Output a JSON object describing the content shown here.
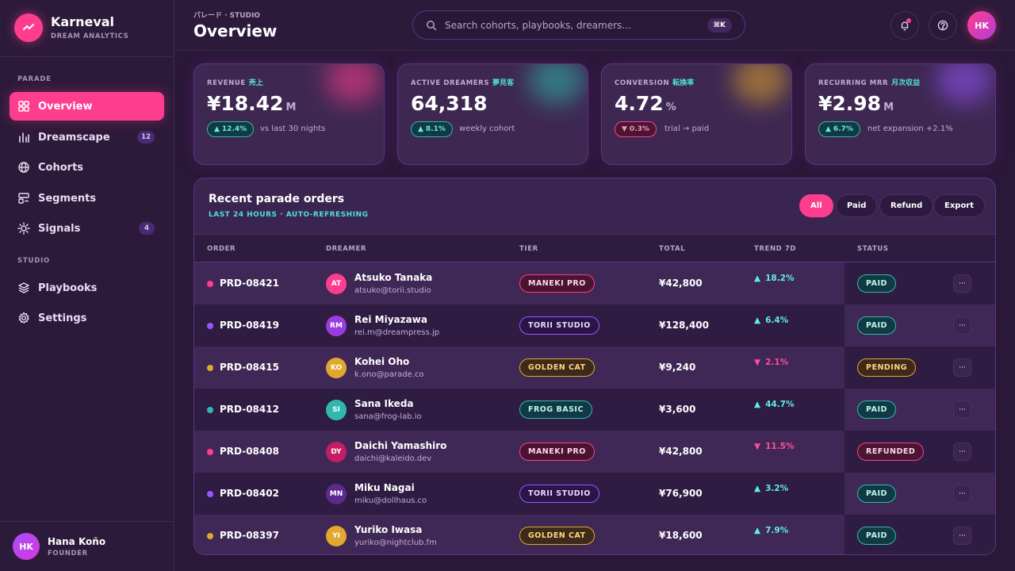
{
  "brand": {
    "name": "Karneval",
    "subtitle": "DREAM ANALYTICS"
  },
  "sidebar": {
    "section_parade": "PARADE",
    "section_studio": "STUDIO",
    "items": [
      {
        "label": "Overview",
        "icon": "grid-icon"
      },
      {
        "label": "Dreamscape",
        "icon": "bar-chart-icon",
        "badge": "12"
      },
      {
        "label": "Cohorts",
        "icon": "globe-icon"
      },
      {
        "label": "Segments",
        "icon": "segments-icon"
      },
      {
        "label": "Signals",
        "icon": "signal-icon",
        "badge": "4"
      },
      {
        "label": "Playbooks",
        "icon": "layers-icon"
      },
      {
        "label": "Settings",
        "icon": "gear-icon"
      }
    ],
    "user": {
      "initials": "HK",
      "name": "Hana Koño",
      "role": "FOUNDER"
    }
  },
  "header": {
    "breadcrumb": "パレード · STUDIO",
    "title": "Overview",
    "search_placeholder": "Search cohorts, playbooks, dreamers…",
    "search_shortcut": "⌘K",
    "avatar_initials": "HK"
  },
  "kpis": [
    {
      "label": "REVENUE",
      "label_jp": "売上",
      "value": "¥18.42",
      "unit": "M",
      "delta": "12.4%",
      "direction": "up",
      "note": "vs last 30 nights",
      "glow": "#ff3d8f"
    },
    {
      "label": "ACTIVE DREAMERS",
      "label_jp": "夢見客",
      "value": "64,318",
      "unit": "",
      "delta": "8.1%",
      "direction": "up",
      "note": "weekly cohort",
      "glow": "#2fb9ad"
    },
    {
      "label": "CONVERSION",
      "label_jp": "転換率",
      "value": "4.72",
      "unit": "%",
      "delta": "0.3%",
      "direction": "down",
      "note": "trial → paid",
      "glow": "#e0a82e"
    },
    {
      "label": "RECURRING MRR",
      "label_jp": "月次収益",
      "value": "¥2.98",
      "unit": "M",
      "delta": "6.7%",
      "direction": "up",
      "note": "net expansion +2.1%",
      "glow": "#9a55ff"
    }
  ],
  "orders": {
    "title": "Recent parade orders",
    "subtitle": "LAST 24 HOURS · AUTO-REFRESHING",
    "filters": [
      "All",
      "Paid",
      "Refund",
      "Export"
    ],
    "columns": [
      "ORDER",
      "DREAMER",
      "TIER",
      "TOTAL",
      "TREND 7D",
      "STATUS"
    ],
    "rows": [
      {
        "id": "PRD-08421",
        "dot": "#ff3d8f",
        "initials": "AT",
        "avatar": "#ff3d8f",
        "name": "Atsuko Tanaka",
        "email": "atsuko@torii.studio",
        "tier": "MANEKI PRO",
        "tier_class": "tier-maneki",
        "total": "¥42,800",
        "trend": "18.2%",
        "trend_dir": "up",
        "trend_level": 0.18,
        "status": "PAID",
        "status_class": "st-paid"
      },
      {
        "id": "PRD-08419",
        "dot": "#9a55ff",
        "initials": "RM",
        "avatar": "#9a3ddf",
        "name": "Rei Miyazawa",
        "email": "rei.m@dreampress.jp",
        "tier": "TORII STUDIO",
        "tier_class": "tier-torii",
        "total": "¥128,400",
        "trend": "6.4%",
        "trend_dir": "up",
        "trend_level": 0.06,
        "status": "PAID",
        "status_class": "st-paid"
      },
      {
        "id": "PRD-08415",
        "dot": "#e0a82e",
        "initials": "KO",
        "avatar": "#e0a82e",
        "name": "Kohei Oho",
        "email": "k.ono@parade.co",
        "tier": "GOLDEN CAT",
        "tier_class": "tier-golden",
        "total": "¥9,240",
        "trend": "2.1%",
        "trend_dir": "down",
        "trend_level": 0.02,
        "status": "PENDING",
        "status_class": "st-pending"
      },
      {
        "id": "PRD-08412",
        "dot": "#2fb9ad",
        "initials": "SI",
        "avatar": "#2fb9ad",
        "name": "Sana Ikeda",
        "email": "sana@frog-lab.io",
        "tier": "FROG BASIC",
        "tier_class": "tier-frog",
        "total": "¥3,600",
        "trend": "44.7%",
        "trend_dir": "up",
        "trend_level": 0.45,
        "status": "PAID",
        "status_class": "st-paid"
      },
      {
        "id": "PRD-08408",
        "dot": "#ff3d8f",
        "initials": "DY",
        "avatar": "#c41e62",
        "name": "Daichi Yamashiro",
        "email": "daichi@kaleido.dev",
        "tier": "MANEKI PRO",
        "tier_class": "tier-maneki",
        "total": "¥42,800",
        "trend": "11.5%",
        "trend_dir": "down",
        "trend_level": 0.115,
        "status": "REFUNDED",
        "status_class": "st-refunded"
      },
      {
        "id": "PRD-08402",
        "dot": "#9a55ff",
        "initials": "MN",
        "avatar": "#5b2a8f",
        "name": "Miku Nagai",
        "email": "miku@dollhaus.co",
        "tier": "TORII STUDIO",
        "tier_class": "tier-torii",
        "total": "¥76,900",
        "trend": "3.2%",
        "trend_dir": "up",
        "trend_level": 0.03,
        "status": "PAID",
        "status_class": "st-paid"
      },
      {
        "id": "PRD-08397",
        "dot": "#e0a82e",
        "initials": "YI",
        "avatar": "#e0a82e",
        "name": "Yuriko Iwasa",
        "email": "yuriko@nightclub.fm",
        "tier": "GOLDEN CAT",
        "tier_class": "tier-golden",
        "total": "¥18,600",
        "trend": "7.9%",
        "trend_dir": "up",
        "trend_level": 0.08,
        "status": "PAID",
        "status_class": "st-paid"
      }
    ]
  },
  "colors": {
    "accent": "#ff3d8f",
    "teal": "#4ee0d4",
    "bg": "#2a1838"
  }
}
